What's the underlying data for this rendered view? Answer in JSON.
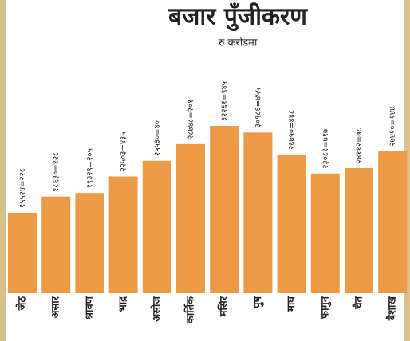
{
  "chart_data": {
    "type": "bar",
    "title": "बजार पुँजीकरण",
    "subtitle": "रु करोडमा",
    "categories": [
      "जेठ",
      "असार",
      "श्रावण",
      "भाद्र",
      "असोज",
      "कार्तिक",
      "मंसिर",
      "पुष",
      "माघ",
      "फागुन",
      "चैत",
      "बैशाख"
    ],
    "values": [
      15524.228,
      18630.128,
      19329.205,
      22503.435,
      25530.4,
      28748.201,
      32261.945,
      30986.455,
      26750.448,
      23081.717,
      24112.78,
      27410.144
    ],
    "value_labels": [
      "१५५२४=२२८",
      "१८६३०=१२८",
      "१९३२९=२०५",
      "२२५०३=४३५",
      "२५५३०=४०",
      "२८७४८=२०१",
      "३२२६१=९४५",
      "३०९८६=४५५",
      "२६७५०=४४८",
      "२३०८१=७१७",
      "२४११२=७८",
      "२७४१०=१४४"
    ],
    "color": "#ec9a45"
  }
}
